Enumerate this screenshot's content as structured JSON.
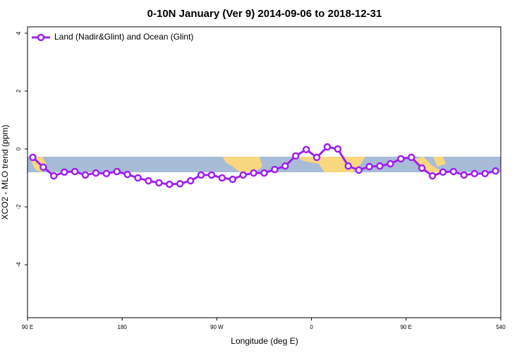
{
  "chart_data": {
    "type": "line",
    "title": "0-10N January (Ver 9)   2014-09-06 to 2018-12-31",
    "x_label": "Longitude (deg E)",
    "y_label": "XCO2 - MLO trend (ppm)",
    "x": [
      95,
      105,
      115,
      125,
      135,
      145,
      155,
      165,
      175,
      185,
      195,
      205,
      215,
      225,
      235,
      245,
      255,
      265,
      275,
      285,
      295,
      305,
      315,
      325,
      335,
      345,
      355,
      365,
      375,
      385,
      395,
      405,
      415,
      425,
      435,
      445,
      455,
      465,
      475,
      485,
      495,
      505,
      515,
      525,
      535
    ],
    "series": [
      {
        "name": "Land (Nadir&Glint) and Ocean (Glint)",
        "color": "#a020f0",
        "values": [
          -0.29,
          -0.63,
          -0.93,
          -0.8,
          -0.78,
          -0.9,
          -0.83,
          -0.85,
          -0.78,
          -0.88,
          -1.0,
          -1.1,
          -1.17,
          -1.22,
          -1.2,
          -1.1,
          -0.9,
          -0.9,
          -1.0,
          -1.05,
          -0.9,
          -0.83,
          -0.83,
          -0.71,
          -0.59,
          -0.24,
          -0.02,
          -0.29,
          0.07,
          0.0,
          -0.59,
          -0.73,
          -0.61,
          -0.59,
          -0.51,
          -0.34,
          -0.29,
          -0.66,
          -0.93,
          -0.8,
          -0.78,
          -0.9,
          -0.85,
          -0.85,
          -0.76
        ]
      }
    ],
    "xlim": [
      90,
      540
    ],
    "xticks": [
      {
        "value": 90,
        "label": "90 E"
      },
      180,
      {
        "value": 270,
        "label": "90 W"
      },
      {
        "value": 360,
        "label": "0"
      },
      {
        "value": 450,
        "label": "90 E"
      },
      540
    ],
    "ylim": [
      -5.83,
      4.22
    ],
    "yticks": [
      -4,
      -2,
      0,
      2,
      4
    ],
    "legend": "top-left"
  }
}
